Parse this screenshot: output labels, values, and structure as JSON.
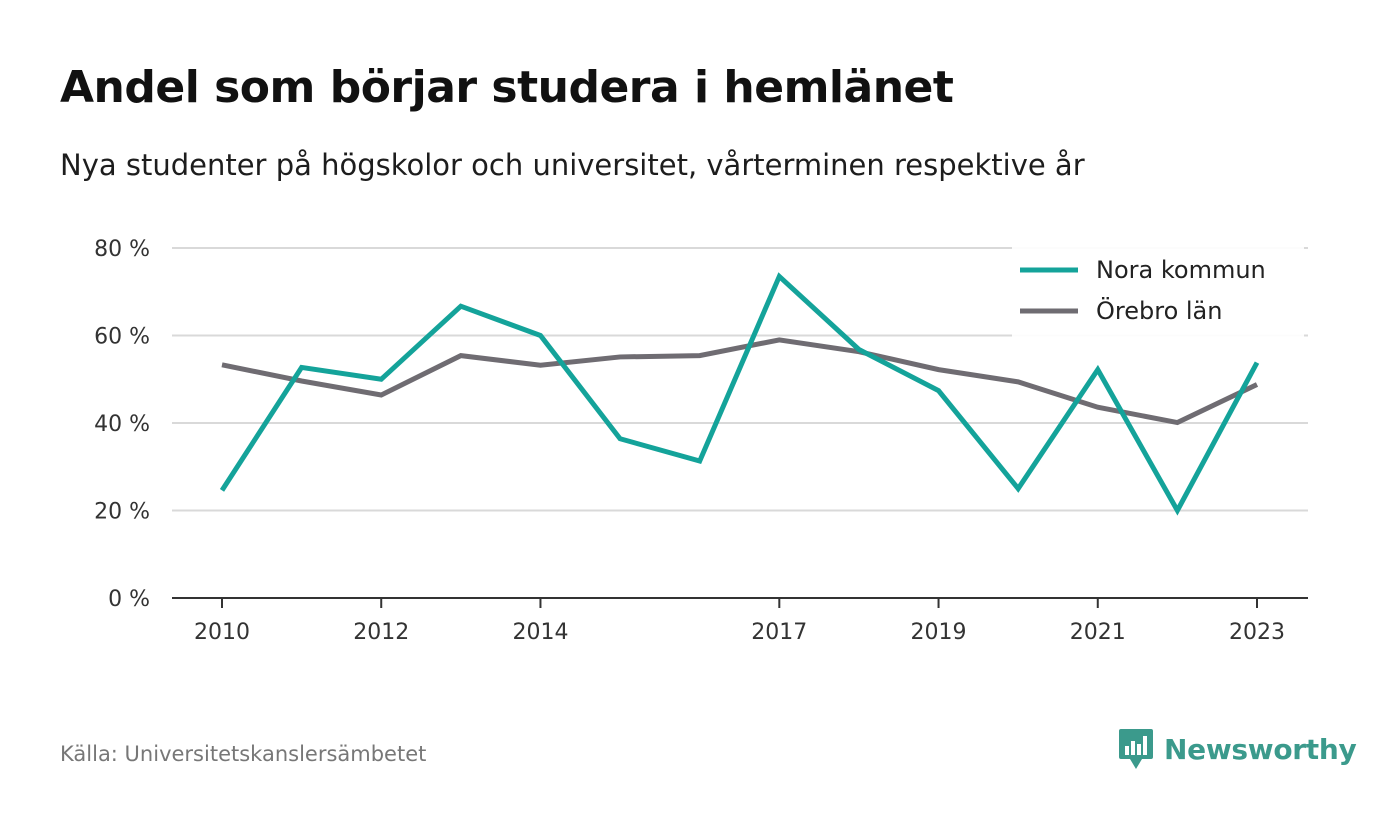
{
  "header": {
    "title": "Andel som börjar studera i hemlänet",
    "subtitle": "Nya studenter på högskolor och universitet, vårterminen respektive år"
  },
  "footer": {
    "source": "Källa: Universitetskanslersämbetet",
    "brand": "Newsworthy"
  },
  "colors": {
    "nora": "#14a39a",
    "orebro": "#6f6c72",
    "grid": "#d9d9d9",
    "axis": "#333333",
    "brand": "#3b9a8c"
  },
  "chart_data": {
    "type": "line",
    "x": [
      2010,
      2011,
      2012,
      2013,
      2014,
      2015,
      2016,
      2017,
      2018,
      2019,
      2020,
      2021,
      2022,
      2023
    ],
    "x_tick_labels": [
      "2010",
      "2012",
      "2014",
      "2017",
      "2019",
      "2021",
      "2023"
    ],
    "y_tick_labels": [
      "0 %",
      "20 %",
      "40 %",
      "60 %",
      "80 %"
    ],
    "y_ticks": [
      0,
      20,
      40,
      60,
      80
    ],
    "ylim": [
      0,
      80
    ],
    "grid": true,
    "legend_position": "top-right",
    "series": [
      {
        "name": "Nora kommun",
        "color": "#14a39a",
        "values": [
          24.6,
          52.7,
          50.0,
          66.7,
          60.0,
          36.4,
          31.3,
          73.5,
          56.8,
          47.4,
          25.0,
          52.2,
          20.0,
          53.8
        ]
      },
      {
        "name": "Örebro län",
        "color": "#6f6c72",
        "values": [
          53.3,
          49.6,
          46.4,
          55.4,
          53.2,
          55.1,
          55.4,
          59.0,
          56.3,
          52.2,
          49.4,
          43.6,
          40.1,
          48.8
        ]
      }
    ]
  }
}
